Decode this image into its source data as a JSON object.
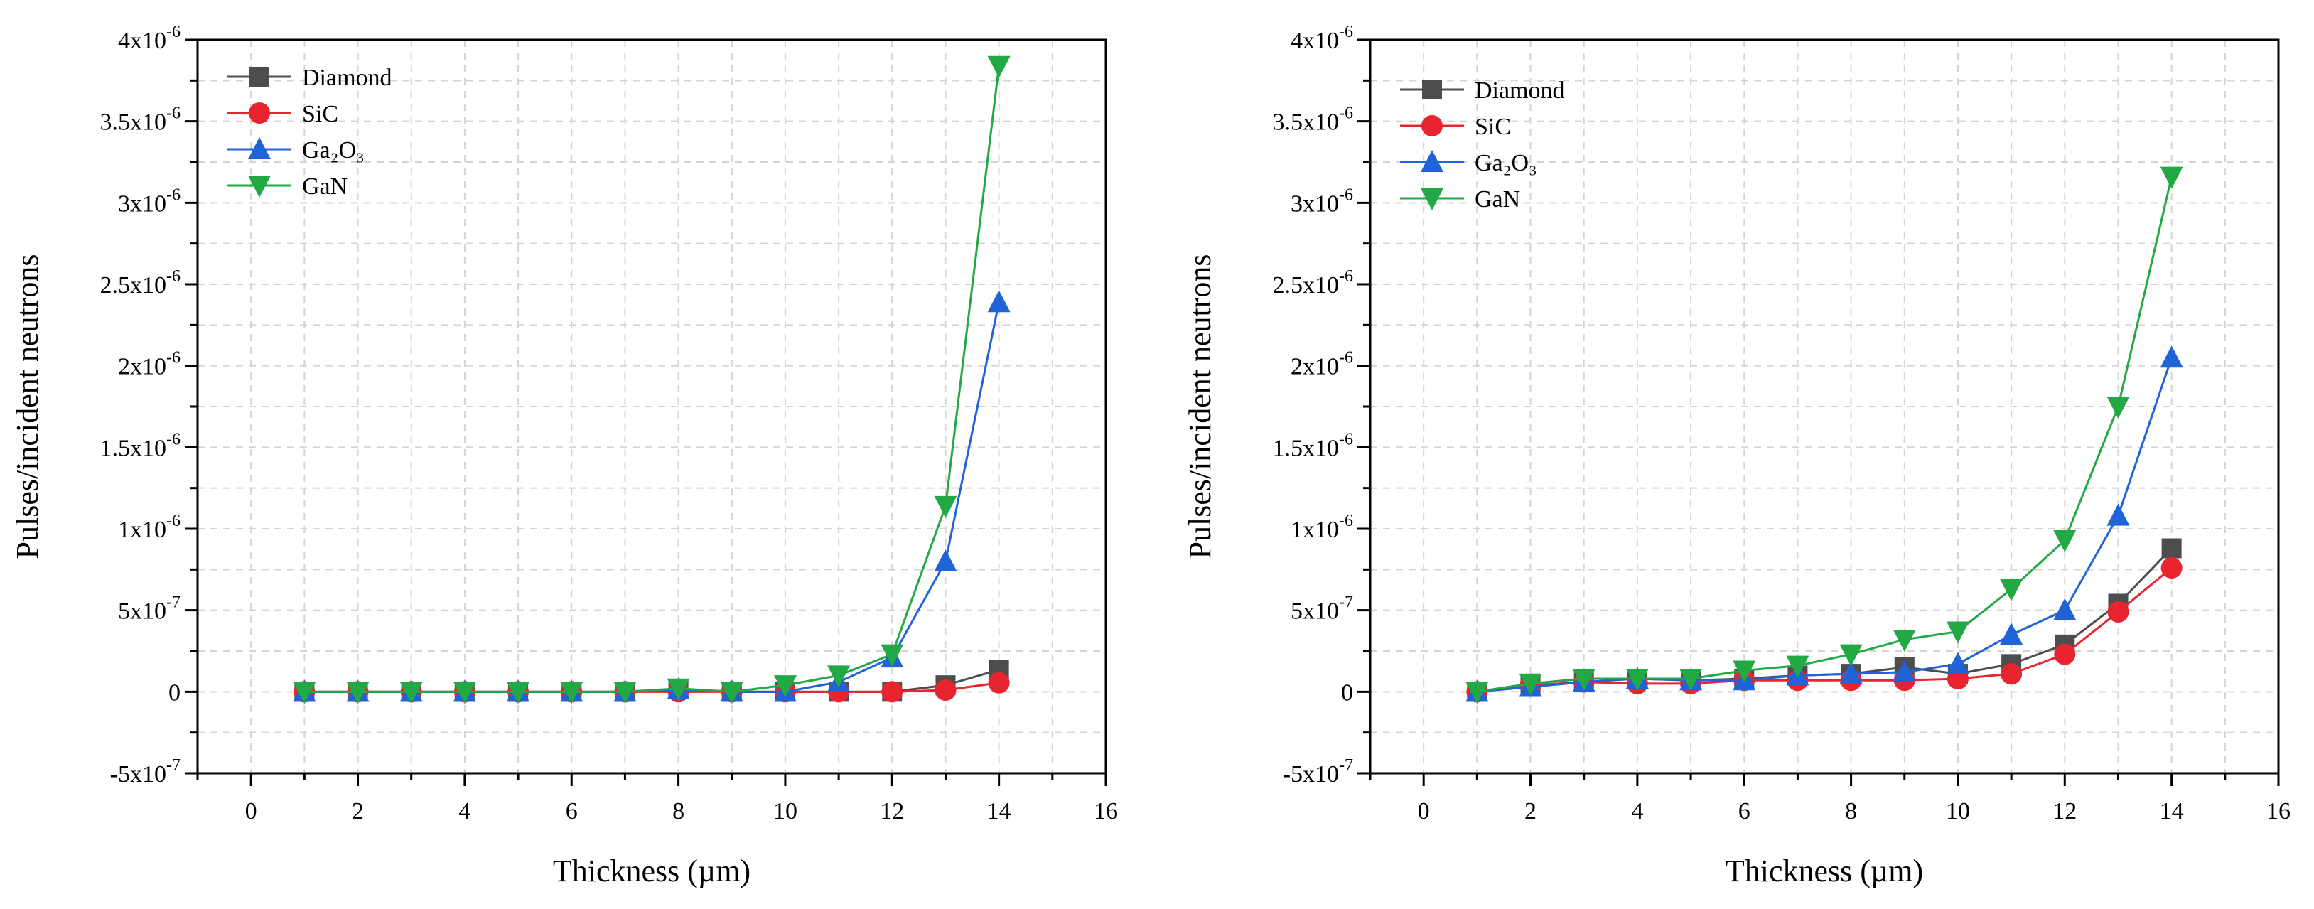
{
  "colors": {
    "Diamond": "#4d4d4d",
    "SiC": "#e8252e",
    "Ga2O3": "#1f63d6",
    "GaN": "#22a845",
    "grid": "#d4d4d4",
    "axis": "#000000"
  },
  "chart_data": [
    {
      "type": "line",
      "xlabel": "Thickness (µm)",
      "ylabel": "Pulses/incident neutrons",
      "xlim": [
        -1,
        16
      ],
      "ylim": [
        -5e-07,
        4e-06
      ],
      "grid": true,
      "legend_position": "top-left",
      "x_ticks": [
        0,
        2,
        4,
        6,
        8,
        10,
        12,
        14,
        16
      ],
      "x_tick_labels": [
        "0",
        "2",
        "4",
        "6",
        "8",
        "10",
        "12",
        "14",
        "16"
      ],
      "y_ticks": [
        -5e-07,
        0,
        5e-07,
        1e-06,
        1.5e-06,
        2e-06,
        2.5e-06,
        3e-06,
        3.5e-06,
        4e-06
      ],
      "y_tick_labels": [
        {
          "mantissa": "-5x10",
          "exp": "-7"
        },
        {
          "mantissa": "0",
          "exp": ""
        },
        {
          "mantissa": "5x10",
          "exp": "-7"
        },
        {
          "mantissa": "1x10",
          "exp": "-6"
        },
        {
          "mantissa": "1.5x10",
          "exp": "-6"
        },
        {
          "mantissa": "2x10",
          "exp": "-6"
        },
        {
          "mantissa": "2.5x10",
          "exp": "-6"
        },
        {
          "mantissa": "3x10",
          "exp": "-6"
        },
        {
          "mantissa": "3.5x10",
          "exp": "-6"
        },
        {
          "mantissa": "4x10",
          "exp": "-6"
        }
      ],
      "x": [
        1,
        2,
        3,
        4,
        5,
        6,
        7,
        8,
        9,
        10,
        11,
        12,
        13,
        14
      ],
      "series": [
        {
          "name": "Diamond",
          "color_key": "Diamond",
          "marker": "square",
          "values": [
            0,
            0,
            0,
            0,
            0,
            0,
            0,
            1.5e-08,
            0,
            0,
            0,
            0,
            4e-08,
            1.35e-07
          ]
        },
        {
          "name": "SiC",
          "color_key": "SiC",
          "marker": "circle",
          "values": [
            0,
            0,
            0,
            0,
            0,
            0,
            0,
            0,
            0,
            0,
            0,
            0,
            1e-08,
            5.5e-08
          ]
        },
        {
          "name": "Ga₂O₃",
          "color_key": "Ga2O3",
          "marker": "triangle-up",
          "values": [
            0,
            0,
            0,
            0,
            0,
            0,
            0,
            1.5e-08,
            0,
            0,
            6e-08,
            2.1e-07,
            8e-07,
            2.39e-06
          ]
        },
        {
          "name": "GaN",
          "color_key": "GaN",
          "marker": "triangle-down",
          "values": [
            0,
            0,
            0,
            0,
            0,
            0,
            0,
            2e-08,
            0,
            4e-08,
            1e-07,
            2.3e-07,
            1.14e-06,
            3.84e-06
          ]
        }
      ]
    },
    {
      "type": "line",
      "xlabel": "Thickness (µm)",
      "ylabel": "Pulses/incident neutrons",
      "xlim": [
        -1,
        16
      ],
      "ylim": [
        -5e-07,
        4e-06
      ],
      "grid": true,
      "legend_position": "top-left",
      "x_ticks": [
        0,
        2,
        4,
        6,
        8,
        10,
        12,
        14,
        16
      ],
      "x_tick_labels": [
        "0",
        "2",
        "4",
        "6",
        "8",
        "10",
        "12",
        "14",
        "16"
      ],
      "y_ticks": [
        -5e-07,
        0,
        5e-07,
        1e-06,
        1.5e-06,
        2e-06,
        2.5e-06,
        3e-06,
        3.5e-06,
        4e-06
      ],
      "y_tick_labels": [
        {
          "mantissa": "-5x10",
          "exp": "-7"
        },
        {
          "mantissa": "0",
          "exp": ""
        },
        {
          "mantissa": "5x10",
          "exp": "-7"
        },
        {
          "mantissa": "1x10",
          "exp": "-6"
        },
        {
          "mantissa": "1.5x10",
          "exp": "-6"
        },
        {
          "mantissa": "2x10",
          "exp": "-6"
        },
        {
          "mantissa": "2.5x10",
          "exp": "-6"
        },
        {
          "mantissa": "3x10",
          "exp": "-6"
        },
        {
          "mantissa": "3.5x10",
          "exp": "-6"
        },
        {
          "mantissa": "4x10",
          "exp": "-6"
        }
      ],
      "x": [
        1,
        2,
        3,
        4,
        5,
        6,
        7,
        8,
        9,
        10,
        11,
        12,
        13,
        14
      ],
      "series": [
        {
          "name": "Diamond",
          "color_key": "Diamond",
          "marker": "square",
          "values": [
            0,
            5e-08,
            8e-08,
            8e-08,
            7e-08,
            8e-08,
            1e-07,
            1.1e-07,
            1.5e-07,
            1.1e-07,
            1.7e-07,
            2.9e-07,
            5.4e-07,
            8.8e-07
          ]
        },
        {
          "name": "SiC",
          "color_key": "SiC",
          "marker": "circle",
          "values": [
            0,
            4e-08,
            6e-08,
            5e-08,
            5e-08,
            7e-08,
            7e-08,
            7e-08,
            7e-08,
            8e-08,
            1.1e-07,
            2.3e-07,
            4.9e-07,
            7.6e-07
          ]
        },
        {
          "name": "Ga₂O₃",
          "color_key": "Ga2O3",
          "marker": "triangle-up",
          "values": [
            0,
            3e-08,
            6e-08,
            8e-08,
            7e-08,
            7e-08,
            1e-07,
            1.1e-07,
            1.2e-07,
            1.7e-07,
            3.5e-07,
            5e-07,
            1.08e-06,
            2.05e-06
          ]
        },
        {
          "name": "GaN",
          "color_key": "GaN",
          "marker": "triangle-down",
          "values": [
            0,
            5e-08,
            8e-08,
            8e-08,
            8e-08,
            1.3e-07,
            1.6e-07,
            2.3e-07,
            3.2e-07,
            3.7e-07,
            6.3e-07,
            9.3e-07,
            1.75e-06,
            3.16e-06
          ]
        }
      ]
    }
  ]
}
